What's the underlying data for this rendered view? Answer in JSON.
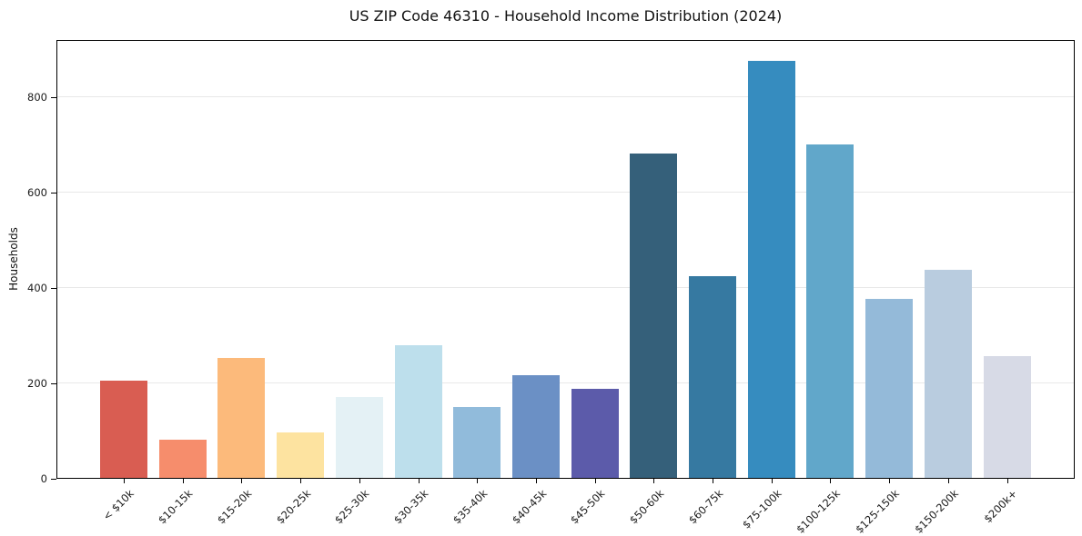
{
  "chart_data": {
    "type": "bar",
    "title": "US ZIP Code 46310 - Household Income Distribution (2024)",
    "xlabel": "",
    "ylabel": "Households",
    "categories": [
      "< $10k",
      "$10-15k",
      "$15-20k",
      "$20-25k",
      "$25-30k",
      "$30-35k",
      "$35-40k",
      "$40-45k",
      "$45-50k",
      "$50-60k",
      "$60-75k",
      "$75-100k",
      "$100-125k",
      "$125-150k",
      "$150-200k",
      "$200k+"
    ],
    "values": [
      203,
      80,
      251,
      95,
      169,
      278,
      148,
      215,
      186,
      680,
      423,
      875,
      700,
      375,
      436,
      255
    ],
    "bar_colors": [
      "#d95d52",
      "#f68d6c",
      "#fcba7b",
      "#fde3a0",
      "#e4f1f5",
      "#bddfec",
      "#91bbdb",
      "#6b90c5",
      "#5c5baa",
      "#35607a",
      "#3679a1",
      "#368cbf",
      "#61a7ca",
      "#94bad9",
      "#b9ccdf",
      "#d7dae6"
    ],
    "yticks": [
      0,
      200,
      400,
      600,
      800
    ],
    "ylim": [
      0,
      920
    ],
    "grid": "horizontal-only",
    "gridline_color": "#e8e8e8",
    "legend": "none",
    "x_tick_rotation_deg": 45
  }
}
